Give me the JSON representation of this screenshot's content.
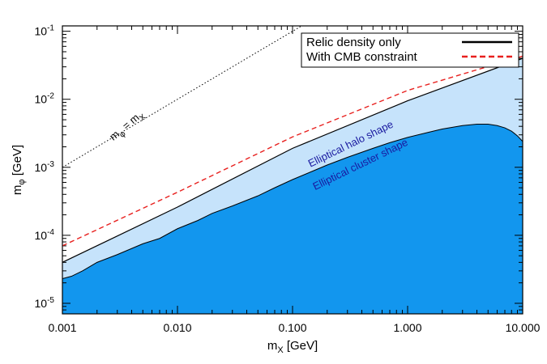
{
  "chart_data": {
    "type": "area",
    "xscale": "log",
    "yscale": "log",
    "xlim": [
      0.001,
      10.0
    ],
    "ylim": [
      7e-06,
      0.12
    ],
    "xlabel": "m_X [GeV]",
    "ylabel": "m_φ [GeV]",
    "x_ticks": [
      {
        "value": 0.001,
        "label": "0.001"
      },
      {
        "value": 0.01,
        "label": "0.010"
      },
      {
        "value": 0.1,
        "label": "0.100"
      },
      {
        "value": 1.0,
        "label": "1.000"
      },
      {
        "value": 10.0,
        "label": "10.000"
      }
    ],
    "y_ticks": [
      {
        "value": 1e-05,
        "label": "10",
        "exp": "-5"
      },
      {
        "value": 0.0001,
        "label": "10",
        "exp": "-4"
      },
      {
        "value": 0.001,
        "label": "10",
        "exp": "-3"
      },
      {
        "value": 0.01,
        "label": "10",
        "exp": "-2"
      },
      {
        "value": 0.1,
        "label": "10",
        "exp": "-1"
      }
    ],
    "legend": {
      "position": "top-right",
      "entries": [
        {
          "label": "Relic density only",
          "color": "#000000",
          "style": "solid"
        },
        {
          "label": "With CMB constraint",
          "color": "#e8201e",
          "style": "dashed"
        }
      ]
    },
    "series": [
      {
        "name": "Relic density only",
        "style": "solid",
        "color": "#000000",
        "x": [
          0.001,
          0.01,
          0.1,
          1.0,
          10.0
        ],
        "y": [
          4e-05,
          0.00026,
          0.0019,
          0.0095,
          0.04
        ]
      },
      {
        "name": "With CMB constraint",
        "style": "dashed",
        "color": "#e8201e",
        "x": [
          0.001,
          0.01,
          0.1,
          1.0,
          10.0
        ],
        "y": [
          7e-05,
          0.00043,
          0.0028,
          0.0135,
          0.043
        ]
      }
    ],
    "regions": [
      {
        "label": "Elliptical halo shape",
        "color": "#c6e3fb",
        "boundary_x": [
          0.001,
          0.01,
          0.1,
          1.0,
          10.0
        ],
        "boundary_y": [
          4e-05,
          0.00026,
          0.0019,
          0.0095,
          0.04
        ]
      },
      {
        "label": "Elliptical cluster shape",
        "color": "#1296ee",
        "boundary_x": [
          0.001,
          0.0012,
          0.0015,
          0.002,
          0.003,
          0.005,
          0.007,
          0.01,
          0.015,
          0.02,
          0.03,
          0.05,
          0.07,
          0.1,
          0.15,
          0.2,
          0.3,
          0.5,
          0.7,
          1.0,
          1.5,
          2.0,
          3.0,
          4.0,
          5.0,
          6.0,
          7.0,
          8.0,
          9.0,
          10.0
        ],
        "boundary_y": [
          2.3e-05,
          2.5e-05,
          3e-05,
          4e-05,
          5.2e-05,
          7.5e-05,
          9e-05,
          0.000125,
          0.000165,
          0.00021,
          0.00027,
          0.00038,
          0.0005,
          0.00066,
          0.00088,
          0.00108,
          0.0014,
          0.0019,
          0.0023,
          0.00275,
          0.00325,
          0.00365,
          0.0041,
          0.0043,
          0.0043,
          0.0041,
          0.0038,
          0.0034,
          0.0029,
          0.0024
        ]
      }
    ],
    "diagonal": {
      "label": "m_φ = m_X",
      "style": "dotted",
      "x": [
        0.001,
        0.16
      ],
      "y": [
        0.001,
        0.16
      ]
    }
  }
}
